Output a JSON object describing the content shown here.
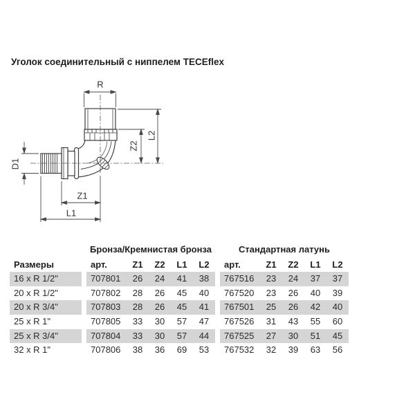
{
  "page": {
    "title": "Уголок соединительный с ниппелем TECEflex"
  },
  "drawing": {
    "description": "technical line drawing of 90-degree elbow fitting with male thread nipple and barbed TECEflex connection",
    "labels": {
      "r": "R",
      "d1": "D1",
      "z1": "Z1",
      "l1": "L1",
      "z2": "Z2",
      "l2": "L2"
    }
  },
  "table": {
    "size_header": "Размеры",
    "groups": [
      {
        "title": "Бронза/Кремнистая бронза",
        "columns": [
          "арт.",
          "Z1",
          "Z2",
          "L1",
          "L2"
        ]
      },
      {
        "title": "Стандартная латунь",
        "columns": [
          "арт.",
          "Z1",
          "Z2",
          "L1",
          "L2"
        ]
      }
    ],
    "rows": [
      {
        "size": "16 x R 1/2\"",
        "shaded": true,
        "bronze": {
          "art": "707801",
          "z1": "26",
          "z2": "24",
          "l1": "41",
          "l2": "38"
        },
        "brass": {
          "art": "767516",
          "z1": "23",
          "z2": "24",
          "l1": "37",
          "l2": "37"
        }
      },
      {
        "size": "20 x R 1/2\"",
        "shaded": false,
        "bronze": {
          "art": "707802",
          "z1": "28",
          "z2": "26",
          "l1": "45",
          "l2": "40"
        },
        "brass": {
          "art": "767520",
          "z1": "23",
          "z2": "26",
          "l1": "40",
          "l2": "39"
        }
      },
      {
        "size": "20 x R 3/4\"",
        "shaded": true,
        "bronze": {
          "art": "707803",
          "z1": "28",
          "z2": "26",
          "l1": "45",
          "l2": "41"
        },
        "brass": {
          "art": "767501",
          "z1": "25",
          "z2": "26",
          "l1": "42",
          "l2": "40"
        }
      },
      {
        "size": "25 x R 1\"",
        "shaded": false,
        "bronze": {
          "art": "707805",
          "z1": "33",
          "z2": "30",
          "l1": "57",
          "l2": "47"
        },
        "brass": {
          "art": "767526",
          "z1": "31",
          "z2": "43",
          "l1": "55",
          "l2": "60"
        }
      },
      {
        "size": "25 x R 3/4\"",
        "shaded": true,
        "bronze": {
          "art": "707804",
          "z1": "33",
          "z2": "30",
          "l1": "57",
          "l2": "44"
        },
        "brass": {
          "art": "767525",
          "z1": "27",
          "z2": "30",
          "l1": "51",
          "l2": "45"
        }
      },
      {
        "size": "32 x R 1\"",
        "shaded": false,
        "bronze": {
          "art": "707806",
          "z1": "38",
          "z2": "36",
          "l1": "69",
          "l2": "53"
        },
        "brass": {
          "art": "767532",
          "z1": "32",
          "z2": "39",
          "l1": "63",
          "l2": "56"
        }
      }
    ]
  },
  "colors": {
    "row_shade": "#d5d5d5",
    "line_color": "#3c3c3c",
    "dim_color": "#4a4a4a",
    "text_color": "#1d1d1b"
  }
}
